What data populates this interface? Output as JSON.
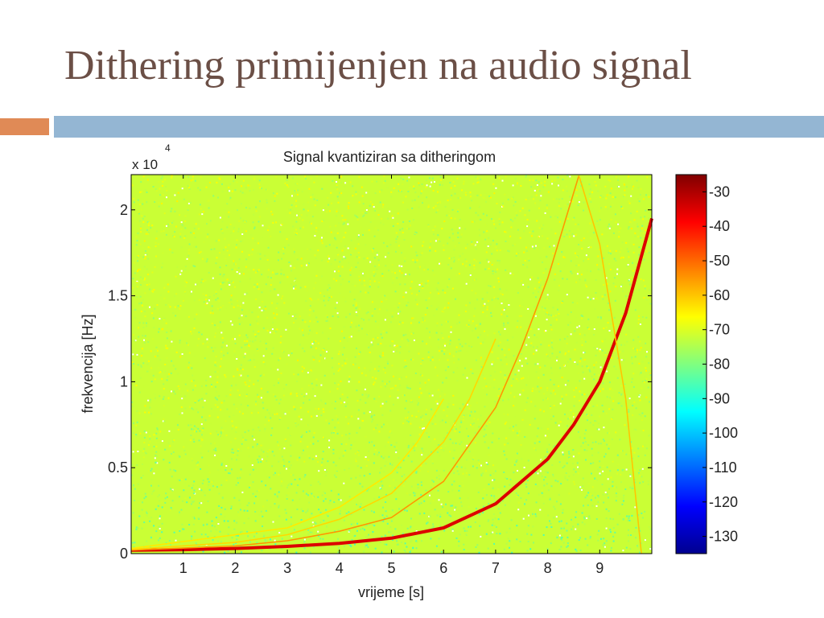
{
  "slide": {
    "title": "Dithering primijenjen na audio signal"
  },
  "chart_data": {
    "type": "heatmap",
    "title": "Signal kvantiziran sa ditheringom",
    "xlabel": "vrijeme [s]",
    "ylabel": "frekvencija [Hz]",
    "y_multiplier_label": "x 10",
    "y_multiplier_exponent": "4",
    "xlim": [
      0,
      10
    ],
    "ylim": [
      0,
      22050
    ],
    "x_ticks": [
      1,
      2,
      3,
      4,
      5,
      6,
      7,
      8,
      9
    ],
    "x_tick_labels": [
      "1",
      "2",
      "3",
      "4",
      "5",
      "6",
      "7",
      "8",
      "9"
    ],
    "y_ticks": [
      0,
      5000,
      10000,
      15000,
      20000
    ],
    "y_tick_labels": [
      "0",
      "0.5",
      "1",
      "1.5",
      "2"
    ],
    "colorbar": {
      "range": [
        -135,
        -25
      ],
      "ticks": [
        -30,
        -40,
        -50,
        -60,
        -70,
        -80,
        -90,
        -100,
        -110,
        -120,
        -130
      ],
      "tick_labels": [
        "-30",
        "-40",
        "-50",
        "-60",
        "-70",
        "-80",
        "-90",
        "-100",
        "-110",
        "-120",
        "-130"
      ],
      "colormap": "jet"
    },
    "background_level_db": -72,
    "series": [
      {
        "level_db": -35,
        "points": [
          [
            0,
            200
          ],
          [
            1,
            230
          ],
          [
            2,
            300
          ],
          [
            3,
            420
          ],
          [
            4,
            600
          ],
          [
            5,
            900
          ],
          [
            6,
            1500
          ],
          [
            7,
            2900
          ],
          [
            8,
            5500
          ],
          [
            8.5,
            7500
          ],
          [
            9,
            10000
          ],
          [
            9.5,
            14000
          ],
          [
            10,
            19500
          ]
        ]
      },
      {
        "level_db": -55,
        "points": [
          [
            0,
            200
          ],
          [
            2,
            450
          ],
          [
            3,
            750
          ],
          [
            4,
            1300
          ],
          [
            5,
            2100
          ],
          [
            6,
            4200
          ],
          [
            7,
            8500
          ],
          [
            7.5,
            12000
          ],
          [
            8,
            16000
          ],
          [
            8.6,
            22000
          ]
        ]
      },
      {
        "level_db": -60,
        "points": [
          [
            8.6,
            22000
          ],
          [
            9,
            18000
          ],
          [
            9.5,
            9000
          ],
          [
            9.7,
            3000
          ],
          [
            9.8,
            0
          ]
        ]
      },
      {
        "level_db": -62,
        "points": [
          [
            0,
            250
          ],
          [
            2,
            650
          ],
          [
            3,
            1100
          ],
          [
            4,
            2000
          ],
          [
            5,
            3500
          ],
          [
            6,
            6500
          ],
          [
            6.5,
            9000
          ],
          [
            7,
            12500
          ]
        ]
      },
      {
        "level_db": -64,
        "points": [
          [
            0,
            300
          ],
          [
            3,
            1500
          ],
          [
            4,
            2700
          ],
          [
            5,
            4700
          ],
          [
            5.5,
            6500
          ],
          [
            6,
            9000
          ]
        ]
      }
    ]
  }
}
